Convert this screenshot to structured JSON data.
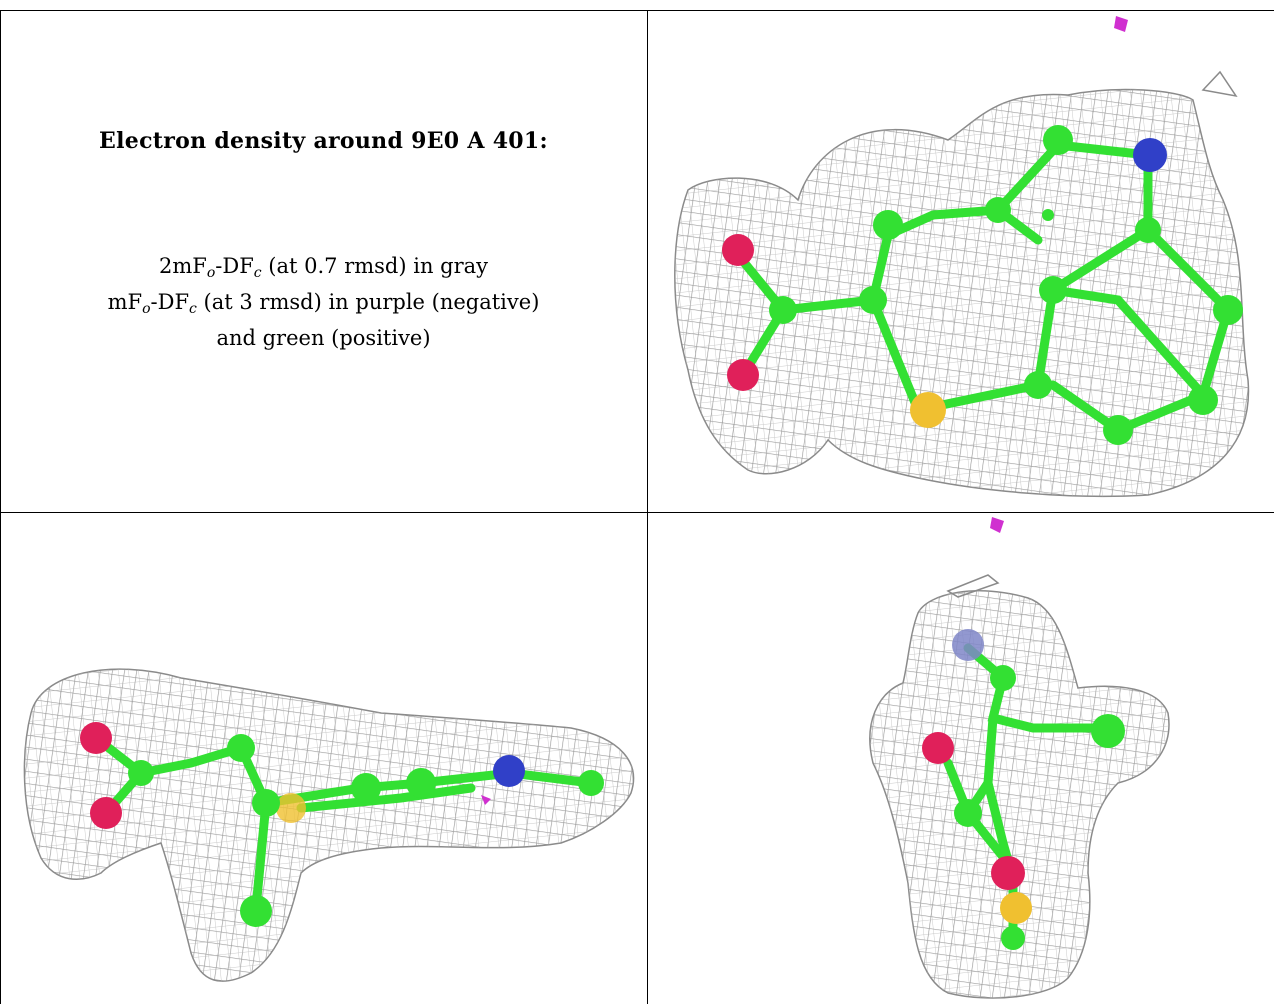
{
  "caption": {
    "title": "Electron density around 9E0 A 401:",
    "line1": {
      "a": "2mF",
      "a_sub": "o",
      "b": "-DF",
      "b_sub": "c",
      "rest": " (at 0.7 rmsd) in gray"
    },
    "line2": {
      "a": "mF",
      "a_sub": "o",
      "b": "-DF",
      "b_sub": "c",
      "rest": " (at 3 rmsd) in purple (negative)"
    },
    "line3": "and green (positive)"
  },
  "colors": {
    "mesh_gray": "#9a9a9a",
    "carbon_green": "#33e033",
    "oxygen_red": "#e0205a",
    "nitrogen_blue": "#3040c8",
    "sulfur_yellow": "#f0c030",
    "negative_purple": "#d030d0"
  }
}
